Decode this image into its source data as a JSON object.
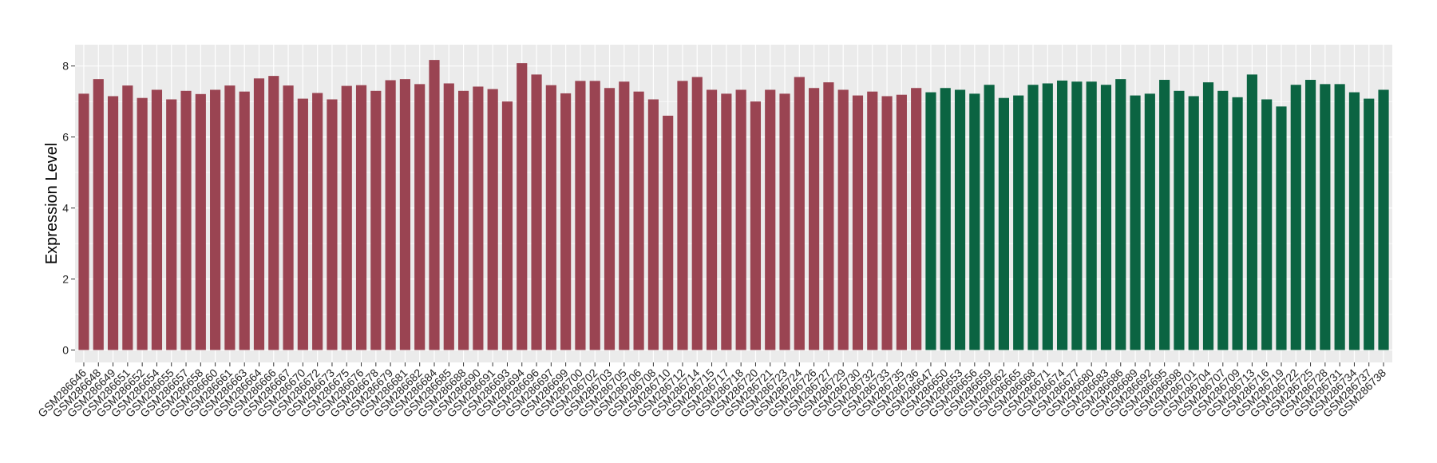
{
  "chart_data": {
    "type": "bar",
    "ylabel": "Expression Level",
    "xlabel": "",
    "ylim": [
      -0.35,
      8.6
    ],
    "yticks": [
      0,
      2,
      4,
      6,
      8
    ],
    "grid": true,
    "legend": "none",
    "colors": {
      "group1": "#9A4452",
      "group2": "#0B6442",
      "panel": "#EBEBEB",
      "gridline": "#FFFFFF"
    },
    "series": [
      {
        "group": "group1",
        "categories": [
          "GSM286646",
          "GSM286648",
          "GSM286649",
          "GSM286651",
          "GSM286652",
          "GSM286654",
          "GSM286655",
          "GSM286657",
          "GSM286658",
          "GSM286660",
          "GSM286661",
          "GSM286663",
          "GSM286664",
          "GSM286666",
          "GSM286667",
          "GSM286670",
          "GSM286672",
          "GSM286673",
          "GSM286675",
          "GSM286676",
          "GSM286678",
          "GSM286679",
          "GSM286681",
          "GSM286682",
          "GSM286684",
          "GSM286685",
          "GSM286688",
          "GSM286690",
          "GSM286691",
          "GSM286693",
          "GSM286694",
          "GSM286696",
          "GSM286697",
          "GSM286699",
          "GSM286700",
          "GSM286702",
          "GSM286703",
          "GSM286705",
          "GSM286706",
          "GSM286708",
          "GSM286710",
          "GSM286712",
          "GSM286714",
          "GSM286715",
          "GSM286717",
          "GSM286718",
          "GSM286720",
          "GSM286721",
          "GSM286723",
          "GSM286724",
          "GSM286726",
          "GSM286727",
          "GSM286729",
          "GSM286730",
          "GSM286732",
          "GSM286733",
          "GSM286735",
          "GSM286736"
        ],
        "values": [
          7.22,
          7.63,
          7.15,
          7.45,
          7.1,
          7.33,
          7.06,
          7.3,
          7.21,
          7.33,
          7.45,
          7.28,
          7.65,
          7.72,
          7.45,
          7.08,
          7.24,
          7.06,
          7.44,
          7.46,
          7.3,
          7.6,
          7.63,
          7.49,
          8.17,
          7.51,
          7.3,
          7.42,
          7.35,
          7.0,
          8.08,
          7.76,
          7.46,
          7.23,
          7.58,
          7.58,
          7.38,
          7.56,
          7.28,
          7.06,
          6.6,
          7.58,
          7.69,
          7.33,
          7.22,
          7.33,
          7.0,
          7.33,
          7.22,
          7.69,
          7.38,
          7.54,
          7.33,
          7.17,
          7.28,
          7.15,
          7.19,
          7.38
        ]
      },
      {
        "group": "group2",
        "categories": [
          "GSM286647",
          "GSM286650",
          "GSM286653",
          "GSM286656",
          "GSM286659",
          "GSM286662",
          "GSM286665",
          "GSM286668",
          "GSM286671",
          "GSM286674",
          "GSM286677",
          "GSM286680",
          "GSM286683",
          "GSM286686",
          "GSM286689",
          "GSM286692",
          "GSM286695",
          "GSM286698",
          "GSM286701",
          "GSM286704",
          "GSM286707",
          "GSM286709",
          "GSM286713",
          "GSM286716",
          "GSM286719",
          "GSM286722",
          "GSM286725",
          "GSM286728",
          "GSM286731",
          "GSM286734",
          "GSM286737",
          "GSM286738"
        ],
        "values": [
          7.26,
          7.38,
          7.33,
          7.22,
          7.47,
          7.1,
          7.17,
          7.47,
          7.51,
          7.59,
          7.56,
          7.56,
          7.47,
          7.63,
          7.17,
          7.22,
          7.61,
          7.3,
          7.15,
          7.54,
          7.3,
          7.12,
          7.76,
          7.06,
          6.86,
          7.47,
          7.61,
          7.49,
          7.49,
          7.26,
          7.08,
          7.33
        ]
      }
    ]
  }
}
